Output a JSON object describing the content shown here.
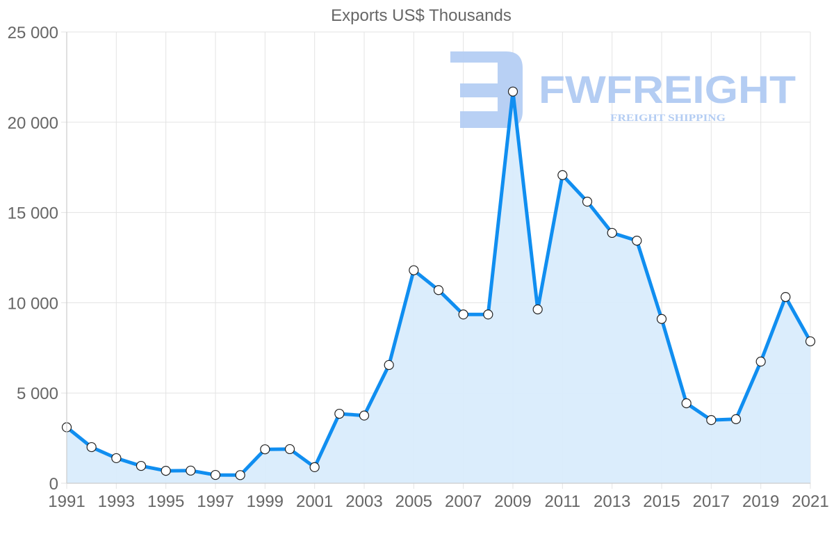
{
  "chart_data": {
    "type": "area",
    "title": "Exports US$ Thousands",
    "xlabel": "",
    "ylabel": "",
    "ylim": [
      0,
      25000
    ],
    "yticks": [
      0,
      5000,
      10000,
      15000,
      20000,
      25000
    ],
    "ytick_labels": [
      "0",
      "5 000",
      "10 000",
      "15 000",
      "20 000",
      "25 000"
    ],
    "xtick_labels": [
      "1991",
      "1993",
      "1995",
      "1997",
      "1999",
      "2001",
      "2003",
      "2005",
      "2007",
      "2009",
      "2011",
      "2013",
      "2015",
      "2017",
      "2019",
      "2021"
    ],
    "grid": true,
    "legend": "none",
    "x": [
      1991,
      1992,
      1993,
      1994,
      1995,
      1996,
      1997,
      1998,
      1999,
      2000,
      2001,
      2002,
      2003,
      2004,
      2005,
      2006,
      2007,
      2008,
      2009,
      2010,
      2011,
      2012,
      2013,
      2014,
      2015,
      2016,
      2017,
      2018,
      2019,
      2020,
      2021
    ],
    "series": [
      {
        "name": "Exports US$ Thousands",
        "values": [
          3100,
          2000,
          1390,
          960,
          690,
          700,
          460,
          450,
          1880,
          1890,
          890,
          3850,
          3750,
          6550,
          11800,
          10700,
          9350,
          9350,
          21700,
          9630,
          17070,
          15600,
          13870,
          13440,
          9100,
          4430,
          3500,
          3550,
          6740,
          10320,
          7860
        ]
      }
    ]
  },
  "colors": {
    "line": "#108ef0",
    "fill": "#d9ecfc",
    "marker_fill": "#ffffff",
    "marker_stroke": "#222222",
    "text": "#666666",
    "watermark": "#b4cdf3"
  },
  "watermark": {
    "brand": "FWFREIGHT",
    "tagline": "FREIGHT SHIPPING"
  }
}
